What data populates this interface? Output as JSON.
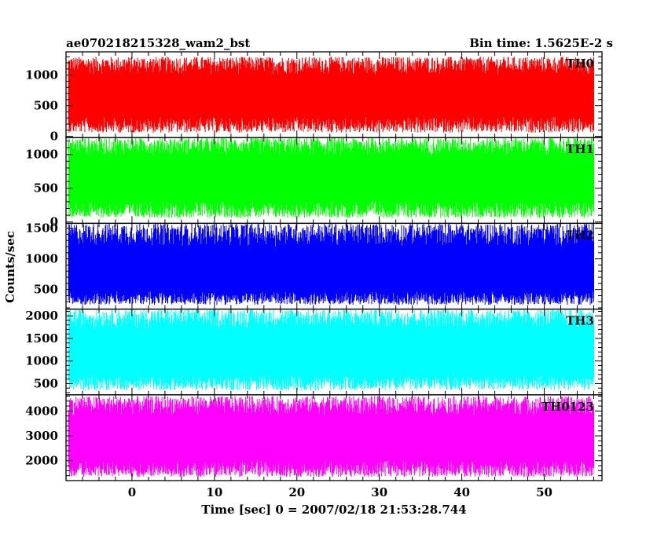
{
  "header": {
    "title": "ae070218215328_wam2_bst",
    "bin_time": "Bin time: 1.5625E-2 s"
  },
  "chart_data": {
    "type": "line",
    "xlabel": "Time [sec] 0 = 2007/02/18 21:53:28.744",
    "ylabel": "Counts/sec",
    "xlim": [
      -8,
      57
    ],
    "x_ticks": [
      0,
      10,
      20,
      30,
      40,
      50
    ],
    "data_x_range": [
      -7.7,
      56.0
    ],
    "panels": [
      {
        "name": "TH0",
        "color": "#ff0000",
        "ylim": [
          -20,
          1380
        ],
        "y_ticks": [
          0,
          500,
          1000
        ],
        "envelope": {
          "low": 60,
          "mid": 640,
          "high": 1300
        }
      },
      {
        "name": "TH1",
        "color": "#00ff00",
        "ylim": [
          -20,
          1250
        ],
        "y_ticks": [
          0,
          500,
          1000
        ],
        "envelope": {
          "low": 60,
          "mid": 640,
          "high": 1250
        }
      },
      {
        "name": "TH2",
        "color": "#0000ff",
        "ylim": [
          180,
          1580
        ],
        "y_ticks": [
          500,
          1000,
          1500
        ],
        "envelope": {
          "low": 250,
          "mid": 740,
          "high": 1580
        }
      },
      {
        "name": "TH3",
        "color": "#00ffff",
        "ylim": [
          250,
          2150
        ],
        "y_ticks": [
          500,
          1000,
          1500,
          2000
        ],
        "envelope": {
          "low": 350,
          "mid": 1150,
          "high": 2150
        }
      },
      {
        "name": "TH0123",
        "color": "#ff00ff",
        "ylim": [
          1200,
          4650
        ],
        "y_ticks": [
          2000,
          3000,
          4000
        ],
        "envelope": {
          "low": 1350,
          "mid": 2850,
          "high": 4600
        }
      }
    ]
  }
}
